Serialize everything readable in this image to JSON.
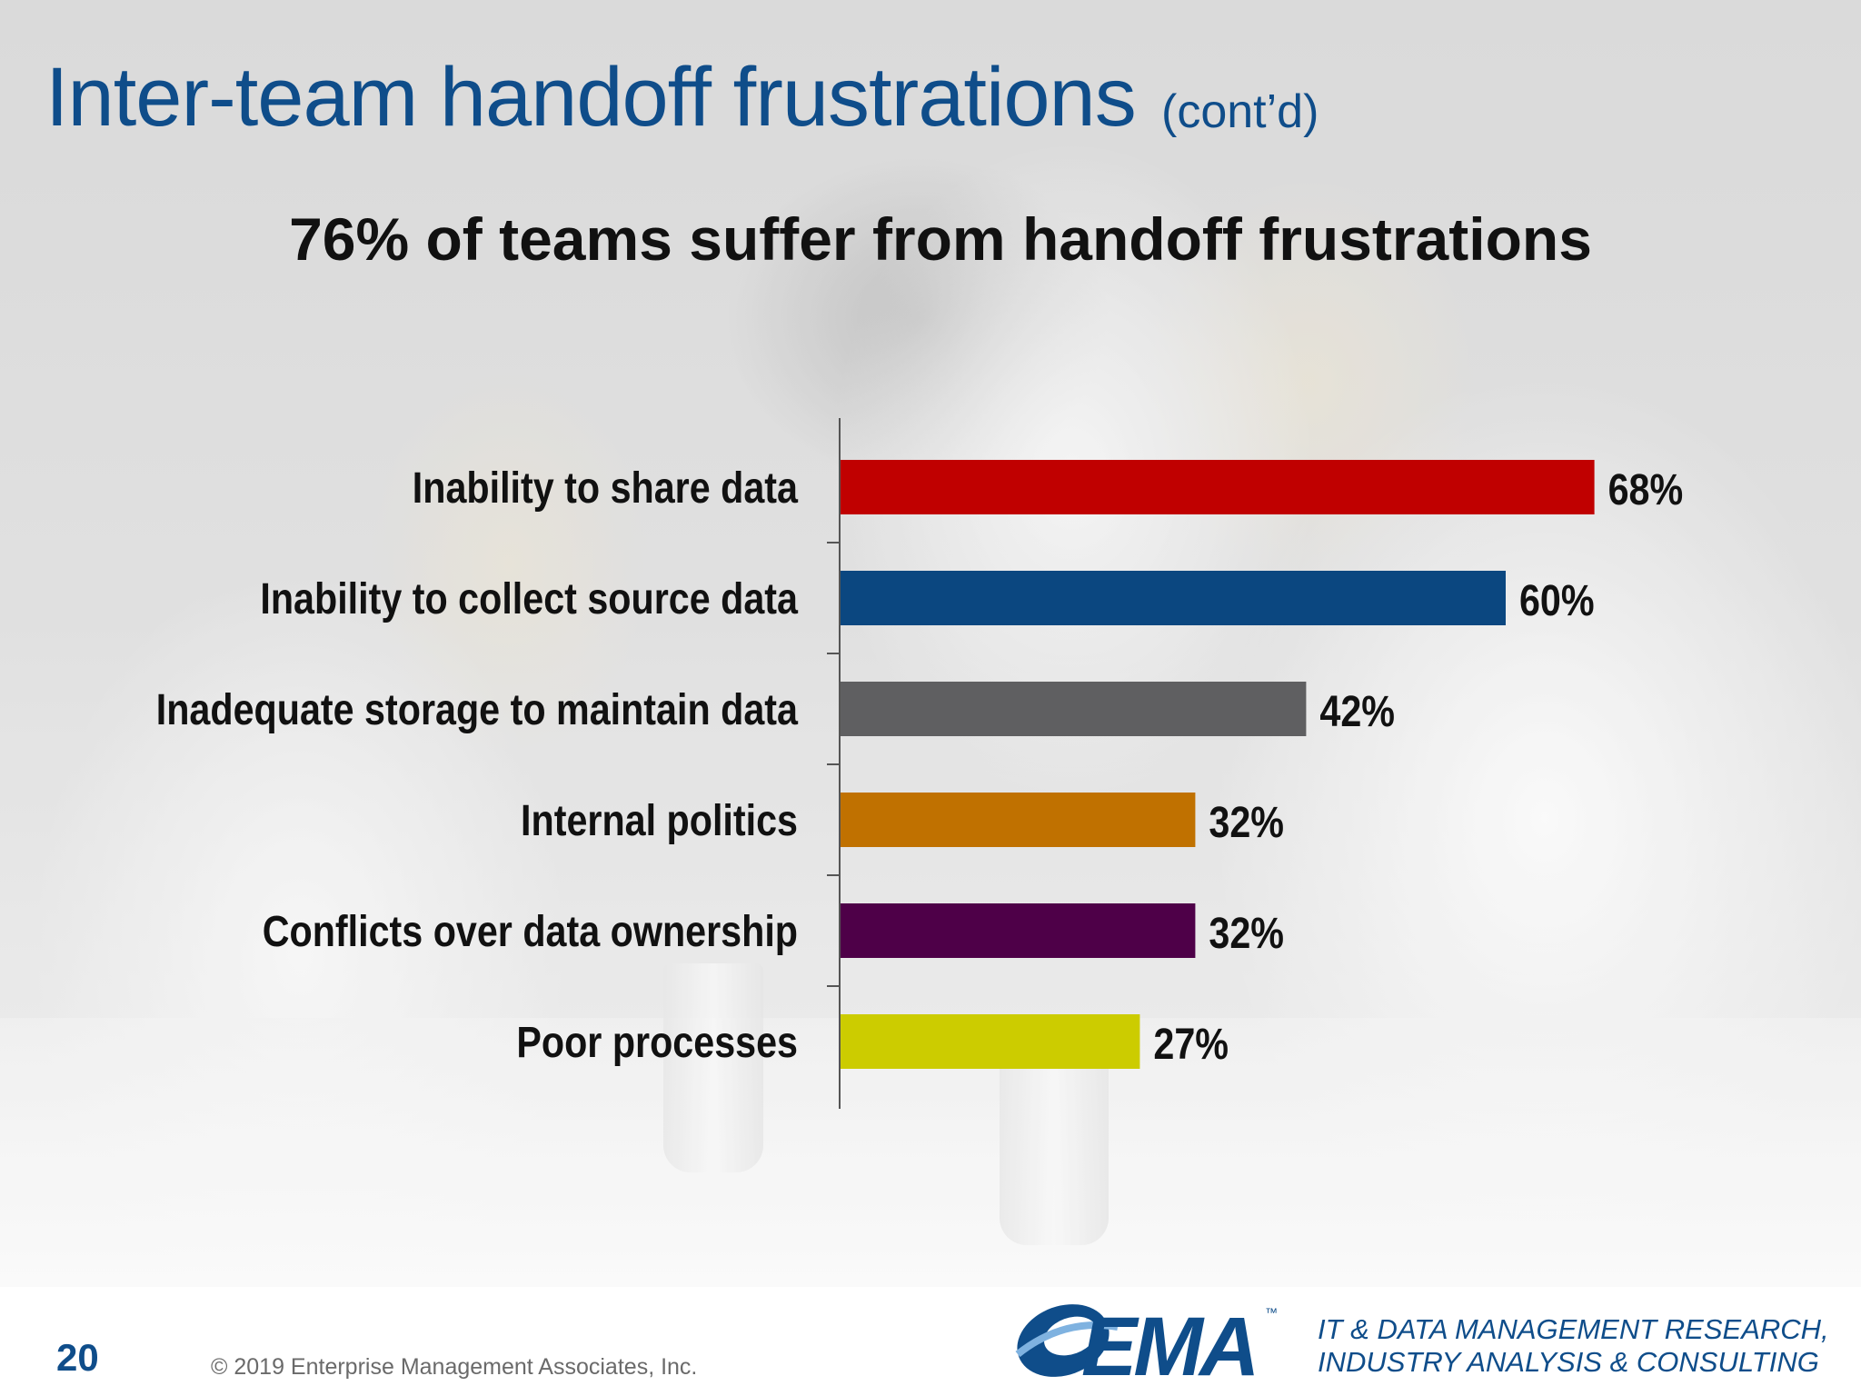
{
  "slide": {
    "title": "Inter-team handoff frustrations",
    "title_suffix": "(cont’d)",
    "subtitle": "76% of teams suffer from handoff frustrations"
  },
  "chart_data": {
    "type": "bar",
    "orientation": "horizontal",
    "title": "76% of teams suffer from handoff frustrations",
    "categories": [
      "Inability to share data",
      "Inability to collect source data",
      "Inadequate storage to maintain data",
      "Internal politics",
      "Conflicts over data ownership",
      "Poor processes"
    ],
    "values": [
      68,
      60,
      42,
      32,
      32,
      27
    ],
    "value_labels": [
      "68%",
      "60%",
      "42%",
      "32%",
      "32%",
      "27%"
    ],
    "colors": [
      "#c00000",
      "#0b4780",
      "#5f5f61",
      "#c07100",
      "#4e0048",
      "#cccc00"
    ],
    "xlim": [
      0,
      100
    ],
    "grid": false,
    "legend": "none"
  },
  "footer": {
    "page_number": "20",
    "copyright": "© 2019 Enterprise Management Associates, Inc.",
    "logo_text": "EMA",
    "logo_tm": "™",
    "tagline_line1": "IT & DATA MANAGEMENT RESEARCH,",
    "tagline_line2": "INDUSTRY ANALYSIS & CONSULTING"
  },
  "colors": {
    "title": "#0f4d8a",
    "text": "#111111"
  }
}
